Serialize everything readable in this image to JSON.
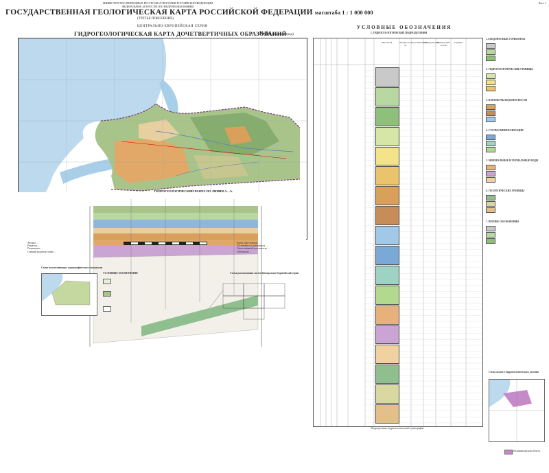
{
  "header": {
    "ministry_lines": [
      "МИНИСТЕРСТВО ПРИРОДНЫХ РЕСУРСОВ И ЭКОЛОГИИ РОССИЙСКОЙ ФЕДЕРАЦИИ",
      "ФЕДЕРАЛЬНОЕ АГЕНТСТВО ПО НЕДРОПОЛЬЗОВАНИЮ"
    ],
    "title": "ГОСУДАРСТВЕННАЯ ГЕОЛОГИЧЕСКАЯ КАРТА РОССИЙСКОЙ ФЕДЕРАЦИИ",
    "scale": "масштаба 1 : 1 000 000",
    "edition": "(ТРЕТЬЕ ПОКОЛЕНИЕ)",
    "series": "ЦЕНТРАЛЬНО-ЕВРОПЕЙСКАЯ СЕРИЯ",
    "map_title": "ГИДРОГЕОЛОГИЧЕСКАЯ КАРТА ДОЧЕТВЕРТИЧНЫХ ОБРАЗОВАНИЙ",
    "sheet": "N-34",
    "sheet_name": "(Калининград)",
    "page_label": "Лист 1"
  },
  "map": {
    "section_title": "ГИДРОГЕОЛОГИЧЕСКИЙ РАЗРЕЗ ПО ЛИНИИ А—А₁",
    "colors": {
      "sea": "#bcd9ee",
      "lagoon": "#a9cfe8",
      "land_green": "#a8c48a",
      "land_dark": "#86ad6e",
      "land_orange": "#e2a868",
      "land_tan": "#e8cfa0",
      "land_olive": "#c7c68f",
      "border": "#7a3a7a"
    }
  },
  "imprint": {
    "left_lines": [
      "Авторы: ...",
      "Редактор: ...",
      "Рецензенты: ...",
      "Главный редактор серии: ..."
    ],
    "right_lines": [
      "Карта подготовлена ...",
      "Составлена по материалам ...",
      "Ответственный исполнитель ...",
      "Отпечатано ..."
    ]
  },
  "insets": {
    "left_title": "Схема использованных картографических материалов",
    "left_legend_title": "УСЛОВНЫЕ ОБОЗНАЧЕНИЯ",
    "center_title": "Схема расположения листов Центрально-Европейской серии",
    "right_title": "Схема эколого-гидрогеологического деления",
    "right_caption": "Калининградская область"
  },
  "legend": {
    "title": "УСЛОВНЫЕ ОБОЗНАЧЕНИЯ",
    "section1": "1. ГИДРОГЕОЛОГИЧЕСКИЕ ПОДРАЗДЕЛЕНИЯ",
    "column_headers": [
      "Система",
      "Отдел",
      "Ярус",
      "Индекс",
      "Литология",
      "Мощность, м",
      "Водообильность",
      "Минерализация",
      "Химический состав",
      "Глубина"
    ],
    "swatches": [
      "#c9c9c9",
      "#b9d7a0",
      "#8fc07a",
      "#d6e6a6",
      "#f3e48a",
      "#e9c46a",
      "#d9a05b",
      "#c78c57",
      "#a0c8e8",
      "#7aa9d6",
      "#9ed3c4",
      "#b3d98f",
      "#e6b27a",
      "#caa4d2",
      "#f0d2a0",
      "#8fbf8f",
      "#d8d8a0",
      "#e3c08a"
    ],
    "right_sections": [
      "1.1 ВОДОНОСНЫЕ ГОРИЗОНТЫ",
      "2. ГИДРОГЕОЛОГИЧЕСКИЕ ГРАНИЦЫ",
      "3. ПАРАМЕТРЫ ВОДОНОСНОСТИ",
      "4. СТОЛБЫ МИНЕРАЛИЗАЦИИ",
      "5. МИНЕРАЛЬНЫЕ И ТЕРМАЛЬНЫЕ ВОДЫ",
      "6. ГЕОЛОГИЧЕСКИЕ ГРАНИЦЫ",
      "7. ПРОЧИЕ ОБОЗНАЧЕНИЯ"
    ],
    "footer_caption": "Подразделения гидрогеологической стратиграфии"
  }
}
